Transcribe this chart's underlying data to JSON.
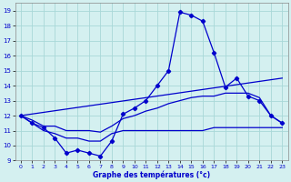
{
  "background_color": "#d4f0f0",
  "grid_color": "#a8d8d8",
  "line_color": "#0000cc",
  "xlabel": "Graphe des températures (°c)",
  "xlim": [
    -0.5,
    23.5
  ],
  "ylim": [
    9,
    19.5
  ],
  "yticks": [
    9,
    10,
    11,
    12,
    13,
    14,
    15,
    16,
    17,
    18,
    19
  ],
  "xticks": [
    0,
    1,
    2,
    3,
    4,
    5,
    6,
    7,
    8,
    9,
    10,
    11,
    12,
    13,
    14,
    15,
    16,
    17,
    18,
    19,
    20,
    21,
    22,
    23
  ],
  "series": [
    {
      "x": [
        0,
        1,
        2,
        3,
        4,
        5,
        6,
        7,
        8,
        9,
        10,
        11,
        12,
        13,
        14,
        15,
        16,
        17,
        18,
        19,
        20,
        21,
        22,
        23
      ],
      "y": [
        12.0,
        11.5,
        11.2,
        10.5,
        9.5,
        9.7,
        9.5,
        9.3,
        10.3,
        12.1,
        12.5,
        13.0,
        14.0,
        15.0,
        18.9,
        18.7,
        18.3,
        16.2,
        13.9,
        14.5,
        13.3,
        13.0,
        12.0,
        11.5
      ],
      "marker": true
    },
    {
      "x": [
        0,
        23
      ],
      "y": [
        12.0,
        14.5
      ],
      "marker": false
    },
    {
      "x": [
        0,
        1,
        2,
        3,
        4,
        5,
        6,
        7,
        8,
        9,
        10,
        11,
        12,
        13,
        14,
        15,
        16,
        17,
        18,
        19,
        20,
        21,
        22,
        23
      ],
      "y": [
        12.0,
        11.7,
        11.3,
        11.3,
        11.0,
        11.0,
        11.0,
        10.9,
        11.3,
        11.8,
        12.0,
        12.3,
        12.5,
        12.8,
        13.0,
        13.2,
        13.3,
        13.3,
        13.5,
        13.5,
        13.5,
        13.2,
        12.0,
        11.5
      ],
      "marker": false
    },
    {
      "x": [
        0,
        1,
        2,
        3,
        4,
        5,
        6,
        7,
        8,
        9,
        10,
        11,
        12,
        13,
        14,
        15,
        16,
        17,
        18,
        19,
        20,
        21,
        22,
        23
      ],
      "y": [
        12.0,
        11.5,
        11.0,
        10.8,
        10.5,
        10.5,
        10.3,
        10.3,
        10.8,
        11.0,
        11.0,
        11.0,
        11.0,
        11.0,
        11.0,
        11.0,
        11.0,
        11.2,
        11.2,
        11.2,
        11.2,
        11.2,
        11.2,
        11.2
      ],
      "marker": false
    }
  ]
}
